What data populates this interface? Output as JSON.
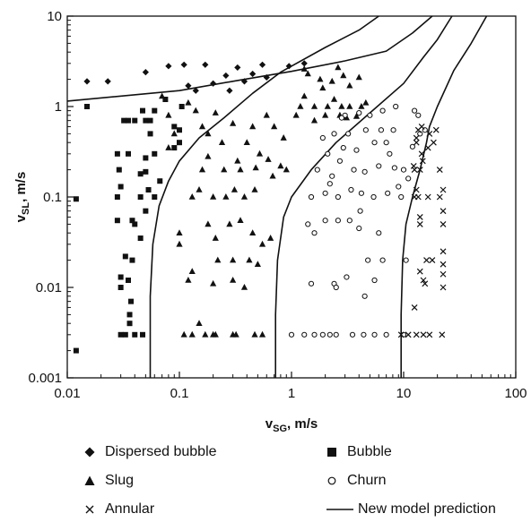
{
  "chart_data": {
    "type": "scatter",
    "title": "",
    "xlabel": "v",
    "xlabel_sub": "SG",
    "xlabel_unit": ", m/s",
    "ylabel": "v",
    "ylabel_sub": "SL",
    "ylabel_unit": ", m/s",
    "xscale": "log",
    "yscale": "log",
    "xlim": [
      0.01,
      100
    ],
    "ylim": [
      0.001,
      10
    ],
    "xticks": [
      "0.01",
      "0.1",
      "1",
      "10",
      "100"
    ],
    "yticks": [
      "0.001",
      "0.01",
      "0.1",
      "1",
      "10"
    ],
    "grid": false,
    "legend_position": "bottom",
    "series": [
      {
        "name": "Dispersed bubble",
        "marker": "diamond",
        "points": [
          [
            0.015,
            1.9
          ],
          [
            0.023,
            1.9
          ],
          [
            0.05,
            2.4
          ],
          [
            0.08,
            2.8
          ],
          [
            0.11,
            2.9
          ],
          [
            0.14,
            1.5
          ],
          [
            0.17,
            2.9
          ],
          [
            0.2,
            1.8
          ],
          [
            0.26,
            2.2
          ],
          [
            0.33,
            2.7
          ],
          [
            0.45,
            2.3
          ],
          [
            0.55,
            2.9
          ],
          [
            0.6,
            2.1
          ],
          [
            0.95,
            2.8
          ],
          [
            1.3,
            3.0
          ],
          [
            0.28,
            1.5
          ],
          [
            0.38,
            1.9
          ],
          [
            0.12,
            1.7
          ]
        ]
      },
      {
        "name": "Bubble",
        "marker": "square",
        "points": [
          [
            0.012,
            0.095
          ],
          [
            0.012,
            0.002
          ],
          [
            0.015,
            1.0
          ],
          [
            0.028,
            0.3
          ],
          [
            0.029,
            0.2
          ],
          [
            0.03,
            0.13
          ],
          [
            0.032,
            0.7
          ],
          [
            0.035,
            0.7
          ],
          [
            0.04,
            0.7
          ],
          [
            0.05,
            0.7
          ],
          [
            0.055,
            0.7
          ],
          [
            0.047,
            0.9
          ],
          [
            0.06,
            0.9
          ],
          [
            0.075,
            1.2
          ],
          [
            0.09,
            0.6
          ],
          [
            0.09,
            0.35
          ],
          [
            0.1,
            0.4
          ],
          [
            0.105,
            1.0
          ],
          [
            0.1,
            0.55
          ],
          [
            0.055,
            0.5
          ],
          [
            0.05,
            0.27
          ],
          [
            0.045,
            0.18
          ],
          [
            0.053,
            0.12
          ],
          [
            0.045,
            0.1
          ],
          [
            0.06,
            0.1
          ],
          [
            0.05,
            0.07
          ],
          [
            0.04,
            0.05
          ],
          [
            0.045,
            0.035
          ],
          [
            0.033,
            0.022
          ],
          [
            0.038,
            0.02
          ],
          [
            0.03,
            0.013
          ],
          [
            0.03,
            0.01
          ],
          [
            0.035,
            0.012
          ],
          [
            0.037,
            0.007
          ],
          [
            0.036,
            0.005
          ],
          [
            0.036,
            0.004
          ],
          [
            0.03,
            0.003
          ],
          [
            0.033,
            0.003
          ],
          [
            0.04,
            0.003
          ],
          [
            0.047,
            0.003
          ],
          [
            0.028,
            0.055
          ],
          [
            0.038,
            0.055
          ],
          [
            0.028,
            0.1
          ],
          [
            0.05,
            0.19
          ],
          [
            0.067,
            0.15
          ],
          [
            0.06,
            0.3
          ],
          [
            0.035,
            0.3
          ]
        ]
      },
      {
        "name": "Slug",
        "marker": "triangle",
        "points": [
          [
            0.07,
            1.3
          ],
          [
            0.08,
            0.8
          ],
          [
            0.09,
            0.5
          ],
          [
            0.12,
            1.1
          ],
          [
            0.14,
            0.9
          ],
          [
            0.16,
            0.6
          ],
          [
            0.18,
            0.5
          ],
          [
            0.21,
            0.85
          ],
          [
            0.24,
            0.4
          ],
          [
            0.3,
            0.65
          ],
          [
            0.4,
            0.4
          ],
          [
            0.45,
            0.6
          ],
          [
            0.6,
            0.8
          ],
          [
            0.7,
            0.6
          ],
          [
            0.85,
            0.45
          ],
          [
            0.1,
            0.04
          ],
          [
            0.1,
            0.03
          ],
          [
            0.13,
            0.015
          ],
          [
            0.12,
            0.012
          ],
          [
            0.11,
            0.003
          ],
          [
            0.13,
            0.003
          ],
          [
            0.17,
            0.003
          ],
          [
            0.21,
            0.003
          ],
          [
            0.15,
            0.004
          ],
          [
            0.2,
            0.003
          ],
          [
            0.3,
            0.003
          ],
          [
            0.32,
            0.003
          ],
          [
            0.47,
            0.003
          ],
          [
            0.55,
            0.003
          ],
          [
            0.13,
            0.1
          ],
          [
            0.15,
            0.12
          ],
          [
            0.2,
            0.1
          ],
          [
            0.26,
            0.1
          ],
          [
            0.31,
            0.12
          ],
          [
            0.38,
            0.1
          ],
          [
            0.47,
            0.12
          ],
          [
            0.18,
            0.05
          ],
          [
            0.21,
            0.035
          ],
          [
            0.22,
            0.02
          ],
          [
            0.28,
            0.05
          ],
          [
            0.35,
            0.055
          ],
          [
            0.45,
            0.04
          ],
          [
            0.55,
            0.03
          ],
          [
            0.65,
            0.035
          ],
          [
            0.3,
            0.02
          ],
          [
            0.42,
            0.02
          ],
          [
            0.5,
            0.018
          ],
          [
            0.2,
            0.011
          ],
          [
            0.3,
            0.012
          ],
          [
            0.38,
            0.01
          ],
          [
            0.25,
            0.2
          ],
          [
            0.35,
            0.2
          ],
          [
            0.48,
            0.21
          ],
          [
            0.52,
            0.3
          ],
          [
            0.62,
            0.26
          ],
          [
            0.68,
            0.17
          ],
          [
            0.8,
            0.22
          ],
          [
            0.9,
            0.2
          ],
          [
            0.33,
            0.25
          ],
          [
            0.18,
            0.28
          ],
          [
            1.2,
            1.0
          ],
          [
            1.3,
            2.6
          ],
          [
            1.4,
            2.3
          ],
          [
            1.8,
            2.0
          ],
          [
            1.9,
            1.6
          ],
          [
            2.3,
            1.9
          ],
          [
            2.6,
            2.7
          ],
          [
            2.9,
            2.2
          ],
          [
            3.3,
            1.7
          ],
          [
            4.0,
            2.1
          ],
          [
            1.3,
            1.3
          ],
          [
            1.6,
            1.0
          ],
          [
            2.1,
            1.0
          ],
          [
            2.4,
            1.2
          ],
          [
            2.8,
            1.0
          ],
          [
            3.3,
            1.0
          ],
          [
            4.2,
            1.0
          ],
          [
            4.6,
            1.1
          ],
          [
            1.1,
            0.8
          ],
          [
            1.6,
            0.7
          ],
          [
            2.0,
            0.8
          ],
          [
            2.7,
            0.8
          ],
          [
            3.1,
            0.75
          ],
          [
            3.8,
            0.78
          ],
          [
            0.08,
            0.35
          ],
          [
            0.16,
            0.2
          ]
        ]
      },
      {
        "name": "Churn",
        "marker": "circle",
        "points": [
          [
            1.0,
            0.003
          ],
          [
            1.3,
            0.003
          ],
          [
            1.6,
            0.003
          ],
          [
            1.9,
            0.003
          ],
          [
            2.2,
            0.003
          ],
          [
            2.5,
            0.003
          ],
          [
            3.5,
            0.003
          ],
          [
            4.4,
            0.003
          ],
          [
            5.5,
            0.003
          ],
          [
            7.0,
            0.003
          ],
          [
            10.0,
            0.003
          ],
          [
            1.5,
            0.011
          ],
          [
            2.4,
            0.011
          ],
          [
            2.5,
            0.01
          ],
          [
            3.1,
            0.013
          ],
          [
            4.5,
            0.008
          ],
          [
            1.4,
            0.05
          ],
          [
            1.6,
            0.04
          ],
          [
            2.0,
            0.055
          ],
          [
            2.6,
            0.055
          ],
          [
            3.3,
            0.055
          ],
          [
            4.0,
            0.045
          ],
          [
            6.0,
            0.04
          ],
          [
            1.5,
            0.1
          ],
          [
            2.0,
            0.11
          ],
          [
            2.6,
            0.1
          ],
          [
            3.4,
            0.12
          ],
          [
            4.2,
            0.11
          ],
          [
            5.4,
            0.1
          ],
          [
            7.2,
            0.11
          ],
          [
            9.5,
            0.1
          ],
          [
            1.7,
            0.2
          ],
          [
            2.3,
            0.17
          ],
          [
            2.7,
            0.25
          ],
          [
            3.6,
            0.2
          ],
          [
            4.5,
            0.19
          ],
          [
            6.0,
            0.22
          ],
          [
            8.3,
            0.21
          ],
          [
            10.0,
            0.2
          ],
          [
            2.1,
            0.3
          ],
          [
            2.9,
            0.35
          ],
          [
            3.8,
            0.33
          ],
          [
            5.5,
            0.4
          ],
          [
            7.0,
            0.4
          ],
          [
            1.9,
            0.45
          ],
          [
            2.4,
            0.5
          ],
          [
            3.2,
            0.5
          ],
          [
            4.6,
            0.55
          ],
          [
            6.3,
            0.55
          ],
          [
            8.1,
            0.55
          ],
          [
            3.0,
            0.8
          ],
          [
            4.0,
            0.85
          ],
          [
            5.0,
            0.8
          ],
          [
            6.5,
            0.9
          ],
          [
            8.5,
            1.0
          ],
          [
            12.5,
            0.9
          ],
          [
            13.5,
            0.8
          ],
          [
            4.8,
            0.02
          ],
          [
            6.5,
            0.02
          ],
          [
            5.5,
            0.012
          ],
          [
            10.5,
            0.02
          ],
          [
            2.8,
            0.75
          ],
          [
            7.5,
            0.3
          ],
          [
            14.0,
            0.5
          ],
          [
            15.5,
            0.55
          ],
          [
            12.0,
            0.36
          ],
          [
            11.0,
            0.16
          ],
          [
            9.0,
            0.13
          ],
          [
            2.2,
            0.14
          ],
          [
            4.1,
            0.07
          ]
        ]
      },
      {
        "name": "Annular",
        "marker": "cross",
        "points": [
          [
            9.5,
            0.003
          ],
          [
            11.0,
            0.003
          ],
          [
            13.0,
            0.003
          ],
          [
            15.0,
            0.003
          ],
          [
            17.0,
            0.003
          ],
          [
            22.0,
            0.003
          ],
          [
            12.5,
            0.006
          ],
          [
            16.0,
            0.02
          ],
          [
            18.0,
            0.02
          ],
          [
            22.5,
            0.025
          ],
          [
            22.5,
            0.014
          ],
          [
            22.5,
            0.01
          ],
          [
            14.0,
            0.05
          ],
          [
            14.0,
            0.06
          ],
          [
            22.5,
            0.05
          ],
          [
            22.5,
            0.07
          ],
          [
            12.5,
            0.1
          ],
          [
            13.5,
            0.1
          ],
          [
            16.5,
            0.1
          ],
          [
            21.0,
            0.1
          ],
          [
            22.5,
            0.12
          ],
          [
            12.5,
            0.2
          ],
          [
            14.0,
            0.2
          ],
          [
            14.5,
            0.3
          ],
          [
            21.0,
            0.2
          ],
          [
            13.0,
            0.4
          ],
          [
            16.5,
            0.35
          ],
          [
            17.0,
            0.5
          ],
          [
            18.5,
            0.4
          ],
          [
            13.0,
            0.45
          ],
          [
            13.5,
            0.55
          ],
          [
            14.5,
            0.6
          ],
          [
            19.5,
            0.55
          ],
          [
            22.5,
            0.018
          ],
          [
            14.0,
            0.015
          ],
          [
            15.0,
            0.012
          ],
          [
            15.5,
            0.011
          ],
          [
            13.0,
            0.12
          ],
          [
            12.3,
            0.22
          ],
          [
            14.8,
            0.25
          ]
        ]
      },
      {
        "name": "New model prediction",
        "marker": "line",
        "lines": [
          [
            [
              0.01,
              1.15
            ],
            [
              0.1,
              1.5
            ],
            [
              0.3,
              1.9
            ],
            [
              1,
              2.45
            ],
            [
              3,
              3.2
            ],
            [
              7,
              4.1
            ],
            [
              12,
              6.5
            ],
            [
              18,
              10
            ]
          ],
          [
            [
              0.055,
              0.001
            ],
            [
              0.055,
              0.008
            ],
            [
              0.058,
              0.03
            ],
            [
              0.066,
              0.08
            ],
            [
              0.08,
              0.15
            ],
            [
              0.1,
              0.25
            ],
            [
              0.15,
              0.45
            ],
            [
              0.25,
              0.75
            ],
            [
              0.45,
              1.4
            ],
            [
              0.8,
              2.4
            ],
            [
              2.0,
              4.5
            ],
            [
              4.0,
              7
            ],
            [
              6.0,
              10
            ]
          ],
          [
            [
              0.72,
              0.001
            ],
            [
              0.72,
              0.005
            ],
            [
              0.75,
              0.02
            ],
            [
              0.85,
              0.06
            ],
            [
              1.0,
              0.1
            ],
            [
              1.5,
              0.2
            ],
            [
              2.5,
              0.4
            ],
            [
              5.0,
              0.85
            ],
            [
              10,
              1.8
            ],
            [
              15,
              3.5
            ],
            [
              20,
              5.5
            ],
            [
              27,
              10
            ]
          ],
          [
            [
              9.5,
              0.001
            ],
            [
              9.5,
              0.005
            ],
            [
              9.8,
              0.02
            ],
            [
              10.5,
              0.05
            ],
            [
              12,
              0.1
            ],
            [
              14,
              0.2
            ],
            [
              16,
              0.4
            ],
            [
              17,
              0.6
            ],
            [
              20,
              1
            ],
            [
              28,
              2.5
            ],
            [
              40,
              5
            ],
            [
              55,
              10
            ]
          ]
        ]
      }
    ]
  }
}
